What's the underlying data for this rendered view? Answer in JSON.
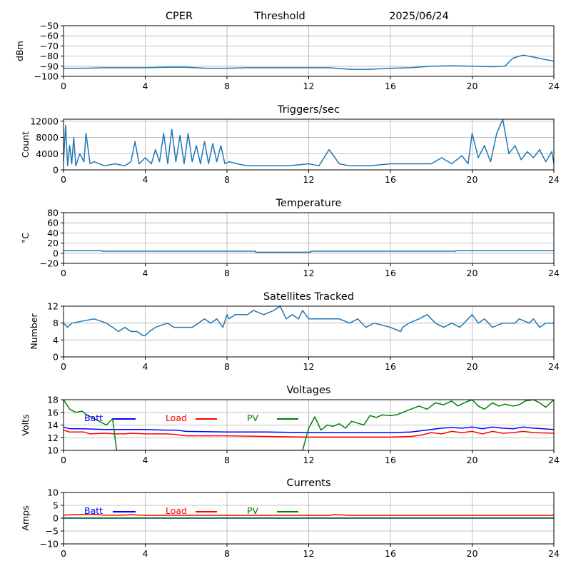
{
  "header": {
    "site": "CPER",
    "mode": "Threshold",
    "date": "2025/06/24"
  },
  "colors": {
    "series": "#1f77b4",
    "grid": "#b0b0b0",
    "batt": "#0000ff",
    "load": "#ff0000",
    "pv": "#008000"
  },
  "chart_data": [
    {
      "type": "line",
      "title": "",
      "ylabel": "dBm",
      "xlim": [
        0,
        24
      ],
      "ylim": [
        -100,
        -50
      ],
      "xticks": [
        0,
        4,
        8,
        12,
        16,
        20,
        24
      ],
      "yticks": [
        -100,
        -90,
        -80,
        -70,
        -60,
        -50
      ],
      "grid": true,
      "series": [
        {
          "x": [
            0,
            1,
            2,
            3,
            4,
            5,
            6,
            7,
            8,
            9,
            10,
            11,
            12,
            13,
            14,
            15,
            16,
            17,
            18,
            19,
            20,
            21,
            21.6,
            22,
            22.5,
            23,
            23.5,
            24
          ],
          "y": [
            -92,
            -92,
            -91.5,
            -91.5,
            -91.5,
            -91,
            -91,
            -92,
            -92,
            -91.5,
            -91.5,
            -91.5,
            -91.5,
            -91.5,
            -93,
            -93,
            -92,
            -91.5,
            -90,
            -89.5,
            -90,
            -90.5,
            -90,
            -82,
            -79,
            -81,
            -83,
            -85
          ]
        }
      ]
    },
    {
      "type": "line",
      "title": "Triggers/sec",
      "ylabel": "Count",
      "xlim": [
        0,
        24
      ],
      "ylim": [
        0,
        12500
      ],
      "xticks": [
        0,
        4,
        8,
        12,
        16,
        20,
        24
      ],
      "yticks": [
        0,
        4000,
        8000,
        12000
      ],
      "grid": true,
      "series": [
        {
          "x": [
            0,
            0.1,
            0.2,
            0.3,
            0.4,
            0.5,
            0.6,
            0.8,
            1.0,
            1.1,
            1.3,
            1.5,
            2,
            2.5,
            3,
            3.3,
            3.5,
            3.7,
            4,
            4.3,
            4.5,
            4.7,
            4.9,
            5.1,
            5.3,
            5.5,
            5.7,
            5.9,
            6.1,
            6.3,
            6.5,
            6.7,
            6.9,
            7.1,
            7.3,
            7.5,
            7.7,
            7.9,
            8.1,
            8.5,
            9,
            10,
            11,
            12,
            12.5,
            13,
            13.5,
            14,
            15,
            16,
            17,
            18,
            18.5,
            19,
            19.5,
            19.8,
            20,
            20.3,
            20.6,
            20.9,
            21.2,
            21.5,
            21.8,
            22.1,
            22.4,
            22.7,
            23,
            23.3,
            23.6,
            23.9,
            24
          ],
          "y": [
            2000,
            11000,
            1000,
            6000,
            1500,
            8000,
            1000,
            4000,
            2000,
            9000,
            1500,
            2000,
            1000,
            1500,
            1000,
            2000,
            7000,
            1500,
            3000,
            1500,
            5000,
            2000,
            9000,
            1500,
            10000,
            2000,
            8500,
            1500,
            9000,
            2000,
            6000,
            1500,
            7000,
            1500,
            6500,
            2000,
            6000,
            1500,
            2000,
            1500,
            1000,
            1000,
            1000,
            1500,
            1000,
            5000,
            1500,
            1000,
            1000,
            1500,
            1500,
            1500,
            3000,
            1500,
            3500,
            1500,
            9000,
            3000,
            6000,
            2000,
            9000,
            12500,
            4000,
            6000,
            2500,
            4500,
            3000,
            5000,
            2000,
            4500,
            1500
          ]
        }
      ]
    },
    {
      "type": "line",
      "title": "Temperature",
      "ylabel": "°C",
      "xlim": [
        0,
        24
      ],
      "ylim": [
        -20,
        80
      ],
      "xticks": [
        0,
        4,
        8,
        12,
        16,
        20,
        24
      ],
      "yticks": [
        -20,
        0,
        20,
        40,
        60,
        80
      ],
      "grid": true,
      "series": [
        {
          "x": [
            0,
            1.9,
            1.9,
            9.4,
            9.4,
            12.1,
            12.1,
            19.2,
            19.2,
            24
          ],
          "y": [
            5,
            5,
            4,
            4,
            2,
            2,
            4,
            4,
            5,
            5
          ]
        }
      ]
    },
    {
      "type": "line",
      "title": "Satellites Tracked",
      "ylabel": "Number",
      "xlim": [
        0,
        24
      ],
      "ylim": [
        0,
        12
      ],
      "xticks": [
        0,
        4,
        8,
        12,
        16,
        20,
        24
      ],
      "yticks": [
        0,
        4,
        8,
        12
      ],
      "grid": true,
      "series": [
        {
          "x": [
            0,
            0.2,
            0.4,
            1.5,
            2.1,
            2.4,
            2.7,
            3.0,
            3.3,
            3.6,
            3.9,
            4.0,
            4.2,
            4.5,
            5.1,
            5.4,
            6.3,
            6.6,
            6.9,
            7.2,
            7.5,
            7.8,
            8.0,
            8.1,
            8.4,
            9.0,
            9.3,
            9.8,
            10.3,
            10.6,
            10.7,
            10.9,
            11.2,
            11.5,
            11.7,
            12.0,
            12.6,
            13.5,
            14.0,
            14.4,
            14.8,
            15.2,
            16.0,
            16.5,
            16.6,
            16.9,
            17.4,
            17.8,
            18.2,
            18.6,
            19.0,
            19.4,
            19.8,
            20.0,
            20.3,
            20.6,
            21.0,
            21.5,
            22.1,
            22.3,
            22.8,
            23.0,
            23.3,
            23.6,
            24
          ],
          "y": [
            8,
            7,
            8,
            9,
            8,
            7,
            6,
            7,
            6,
            6,
            5,
            5,
            6,
            7,
            8,
            7,
            7,
            8,
            9,
            8,
            9,
            7,
            10,
            9,
            10,
            10,
            11,
            10,
            11,
            12,
            11,
            9,
            10,
            9,
            11,
            9,
            9,
            9,
            8,
            9,
            7,
            8,
            7,
            6,
            7,
            8,
            9,
            10,
            8,
            7,
            8,
            7,
            9,
            10,
            8,
            9,
            7,
            8,
            8,
            9,
            8,
            9,
            7,
            8,
            8
          ]
        }
      ]
    },
    {
      "type": "line",
      "title": "Voltages",
      "ylabel": "Volts",
      "xlim": [
        0,
        24
      ],
      "ylim": [
        10,
        18
      ],
      "xticks": [
        0,
        4,
        8,
        12,
        16,
        20,
        24
      ],
      "yticks": [
        10,
        12,
        14,
        16,
        18
      ],
      "grid": true,
      "legend": "top-left",
      "series": [
        {
          "name": "Batt",
          "color": "#0000ff",
          "x": [
            0,
            0.3,
            1,
            2,
            3,
            4,
            5,
            5.5,
            6,
            8,
            10,
            12,
            14,
            16,
            17,
            18,
            18.5,
            19,
            19.5,
            20,
            20.5,
            21,
            21.5,
            22,
            22.5,
            23,
            24
          ],
          "y": [
            13.7,
            13.4,
            13.4,
            13.3,
            13.3,
            13.3,
            13.2,
            13.2,
            13.0,
            12.9,
            12.9,
            12.8,
            12.8,
            12.8,
            12.9,
            13.3,
            13.5,
            13.6,
            13.5,
            13.7,
            13.4,
            13.7,
            13.5,
            13.4,
            13.7,
            13.5,
            13.3
          ]
        },
        {
          "name": "Load",
          "color": "#ff0000",
          "x": [
            0,
            0.3,
            1,
            1.3,
            2,
            2.5,
            3,
            3.3,
            4,
            5,
            5.5,
            6,
            8,
            10,
            12,
            14,
            16,
            17,
            17.5,
            18,
            18.5,
            19,
            19.5,
            20,
            20.5,
            21,
            21.5,
            22,
            22.5,
            23,
            24
          ],
          "y": [
            13.2,
            12.9,
            12.9,
            12.6,
            12.7,
            12.6,
            12.6,
            12.7,
            12.6,
            12.6,
            12.5,
            12.3,
            12.3,
            12.2,
            12.1,
            12.1,
            12.1,
            12.2,
            12.4,
            12.8,
            12.6,
            13.0,
            12.8,
            13.0,
            12.6,
            13.0,
            12.7,
            12.8,
            13.0,
            12.8,
            12.7
          ]
        },
        {
          "name": "PV",
          "color": "#008000",
          "x": [
            0,
            0.3,
            0.6,
            0.9,
            1.2,
            1.5,
            1.8,
            2.1,
            2.4,
            2.6,
            11.7,
            12.0,
            12.3,
            12.6,
            12.9,
            13.2,
            13.5,
            13.8,
            14.1,
            14.4,
            14.7,
            15.0,
            15.3,
            15.6,
            16.0,
            16.3,
            16.6,
            17.0,
            17.4,
            17.8,
            18.2,
            18.6,
            19.0,
            19.3,
            19.6,
            20.0,
            20.3,
            20.6,
            21.0,
            21.3,
            21.6,
            22.0,
            22.3,
            22.6,
            23.0,
            23.3,
            23.6,
            24
          ],
          "y": [
            18.0,
            16.5,
            16.0,
            16.2,
            15.5,
            15.0,
            14.5,
            14.0,
            15.0,
            10,
            10,
            13.5,
            15.3,
            13.2,
            14.0,
            13.8,
            14.2,
            13.5,
            14.6,
            14.3,
            14.0,
            15.5,
            15.2,
            15.6,
            15.5,
            15.6,
            16.0,
            16.5,
            17.0,
            16.5,
            17.5,
            17.2,
            17.8,
            17.0,
            17.5,
            18.0,
            17.0,
            16.5,
            17.5,
            17.0,
            17.3,
            17.0,
            17.2,
            17.8,
            18.0,
            17.5,
            16.8,
            18.0
          ]
        }
      ]
    },
    {
      "type": "line",
      "title": "Currents",
      "ylabel": "Amps",
      "xlim": [
        0,
        24
      ],
      "ylim": [
        -10,
        10
      ],
      "xticks": [
        0,
        4,
        8,
        12,
        16,
        20,
        24
      ],
      "yticks": [
        -10,
        -5,
        0,
        5,
        10
      ],
      "grid": true,
      "legend": "top-left",
      "series": [
        {
          "name": "Batt",
          "color": "#0000ff",
          "x": [
            0,
            24
          ],
          "y": [
            0,
            0
          ]
        },
        {
          "name": "Load",
          "color": "#ff0000",
          "x": [
            0,
            0.5,
            1,
            1.5,
            2,
            3,
            3.3,
            4,
            6,
            8,
            10,
            12,
            13,
            13.3,
            14,
            16,
            18,
            20,
            22,
            24
          ],
          "y": [
            1.2,
            1.4,
            1.5,
            1.5,
            1.2,
            1.2,
            1.4,
            1.1,
            1.1,
            1.1,
            1.1,
            1.1,
            1.1,
            1.4,
            1.1,
            1.1,
            1.1,
            1.1,
            1.1,
            1.1
          ]
        },
        {
          "name": "PV",
          "color": "#008000",
          "x": [
            0,
            24
          ],
          "y": [
            0.1,
            0.1
          ]
        }
      ]
    }
  ]
}
